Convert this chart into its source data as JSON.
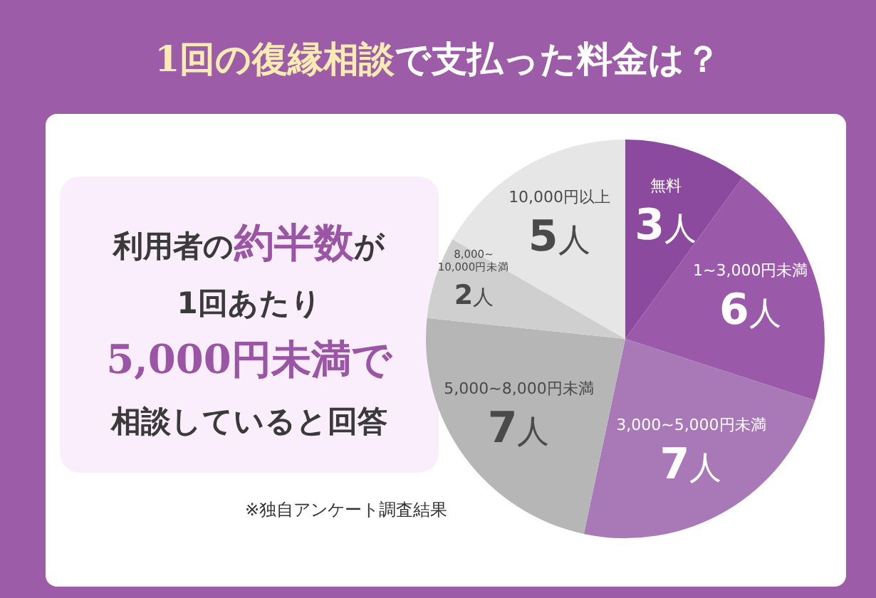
{
  "chart_data": {
    "type": "pie",
    "title": "1回の復縁相談で支払った料金は？",
    "categories": [
      "無料",
      "1~3,000円未満",
      "3,000~5,000円未満",
      "5,000~8,000円未満",
      "8,000~10,000円未満",
      "10,000円以上"
    ],
    "values": [
      3,
      6,
      7,
      7,
      2,
      5
    ],
    "value_labels": [
      "3人",
      "6人",
      "7人",
      "7人",
      "2人",
      "5人"
    ],
    "colors": [
      "#8b4a9d",
      "#9b59aa",
      "#a978b7",
      "#b6b6b6",
      "#cfcfcf",
      "#e6e6e6"
    ],
    "annotations": [
      "利用者の約半数が",
      "1回あたり",
      "5,000円未満で",
      "相談していると回答",
      "※独自アンケート調査結果"
    ]
  }
}
